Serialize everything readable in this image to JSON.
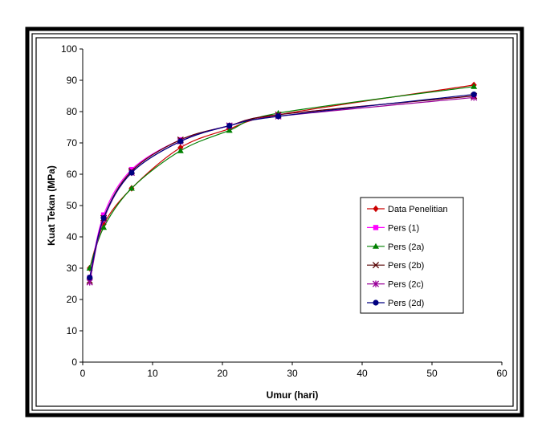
{
  "chart_data": {
    "type": "line",
    "title": "",
    "xlabel": "Umur (hari)",
    "ylabel": "Kuat Tekan (MPa)",
    "xlim": [
      0,
      60
    ],
    "ylim": [
      0,
      100
    ],
    "x_ticks": [
      "0",
      "10",
      "20",
      "30",
      "40",
      "50",
      "60"
    ],
    "y_ticks": [
      "0",
      "10",
      "20",
      "30",
      "40",
      "50",
      "60",
      "70",
      "80",
      "90",
      "100"
    ],
    "grid": false,
    "legend_position": "right",
    "x": [
      1,
      3,
      7,
      14,
      21,
      28,
      56
    ],
    "series": [
      {
        "name": "Data Penelitian",
        "color": "#cc0000",
        "marker": "diamond",
        "values": [
          30,
          44,
          55.5,
          68.5,
          74.5,
          79,
          88.5
        ]
      },
      {
        "name": "Pers (1)",
        "color": "#ff00ff",
        "marker": "square",
        "values": [
          27,
          47,
          61.5,
          71,
          75.5,
          79,
          85
        ]
      },
      {
        "name": "Pers (2a)",
        "color": "#008000",
        "marker": "triangle",
        "values": [
          30,
          43,
          55.5,
          67.5,
          74,
          79.5,
          88
        ]
      },
      {
        "name": "Pers (2b)",
        "color": "#550000",
        "marker": "x",
        "values": [
          26,
          46,
          61,
          71,
          75.5,
          79,
          85
        ]
      },
      {
        "name": "Pers (2c)",
        "color": "#990099",
        "marker": "star",
        "values": [
          25.5,
          45.5,
          60.5,
          70.5,
          75.5,
          78.5,
          84.5
        ]
      },
      {
        "name": "Pers (2d)",
        "color": "#000080",
        "marker": "circle",
        "values": [
          27,
          46,
          60.5,
          70.5,
          75.5,
          78.5,
          85.5
        ]
      }
    ]
  }
}
